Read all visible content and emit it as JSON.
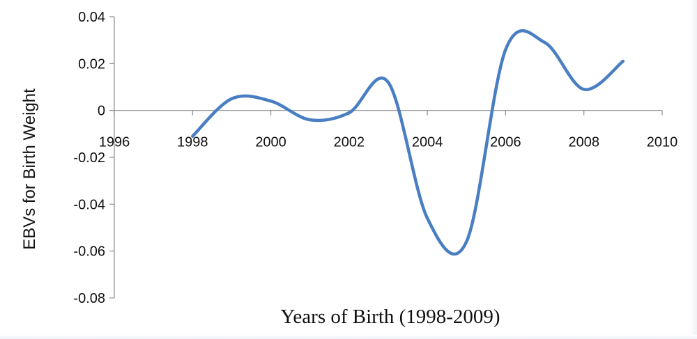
{
  "chart_data": {
    "type": "line",
    "title": "",
    "xlabel": "Years of Birth (1998-2009)",
    "ylabel": "EBVs for Birth Weight",
    "xlim": [
      1996,
      2010
    ],
    "ylim": [
      -0.08,
      0.04
    ],
    "x_ticks": [
      "1996",
      "1998",
      "2000",
      "2002",
      "2004",
      "2006",
      "2008",
      "2010"
    ],
    "y_ticks": [
      "0.04",
      "0.02",
      "0",
      "-0.02",
      "-0.04",
      "-0.06",
      "-0.08"
    ],
    "grid": false,
    "smooth": true,
    "series": [
      {
        "color": "#4a7ec3",
        "x": [
          1998,
          1999,
          2000,
          2001,
          2002,
          2003,
          2004,
          2005,
          2006,
          2007,
          2008,
          2009
        ],
        "y": [
          -0.011,
          0.005,
          0.004,
          -0.004,
          -0.001,
          0.012,
          -0.046,
          -0.056,
          0.026,
          0.029,
          0.009,
          0.021
        ]
      }
    ]
  }
}
